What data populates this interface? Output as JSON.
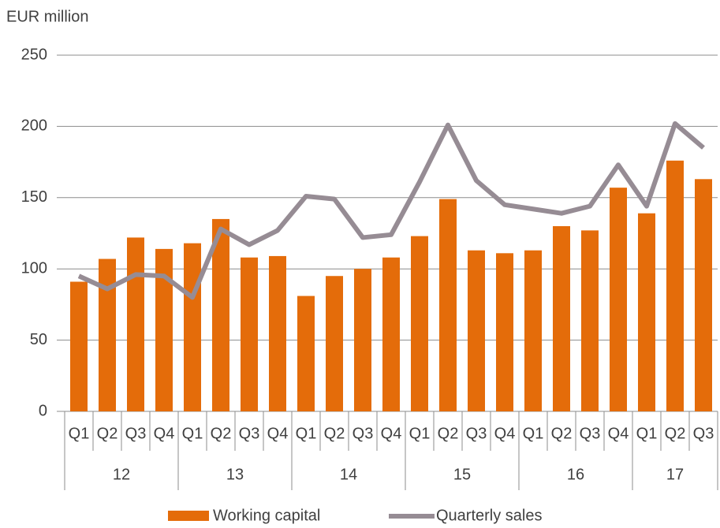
{
  "chart_data": {
    "type": "bar-line",
    "y_label": "EUR million",
    "groups": [
      {
        "label": "12",
        "categories": [
          "Q1",
          "Q2",
          "Q3",
          "Q4"
        ]
      },
      {
        "label": "13",
        "categories": [
          "Q1",
          "Q2",
          "Q3",
          "Q4"
        ]
      },
      {
        "label": "14",
        "categories": [
          "Q1",
          "Q2",
          "Q3",
          "Q4"
        ]
      },
      {
        "label": "15",
        "categories": [
          "Q1",
          "Q2",
          "Q3",
          "Q4"
        ]
      },
      {
        "label": "16",
        "categories": [
          "Q1",
          "Q2",
          "Q3",
          "Q4"
        ]
      },
      {
        "label": "17",
        "categories": [
          "Q1",
          "Q2",
          "Q3"
        ]
      }
    ],
    "series": [
      {
        "name": "Working capital",
        "type": "bar",
        "color": "#e46c0a",
        "values": [
          91,
          107,
          122,
          114,
          118,
          135,
          108,
          109,
          81,
          95,
          100,
          108,
          123,
          149,
          113,
          111,
          113,
          130,
          127,
          157,
          139,
          176,
          163
        ]
      },
      {
        "name": "Quarterly sales",
        "type": "line",
        "color": "#968c94",
        "values": [
          95,
          86,
          96,
          95,
          80,
          128,
          117,
          127,
          151,
          149,
          122,
          124,
          161,
          201,
          162,
          145,
          142,
          139,
          144,
          173,
          144,
          202,
          185
        ]
      }
    ],
    "ylim": [
      0,
      250
    ],
    "yticks": [
      0,
      50,
      100,
      150,
      200,
      250
    ],
    "grid": true,
    "legend": "bottom"
  }
}
